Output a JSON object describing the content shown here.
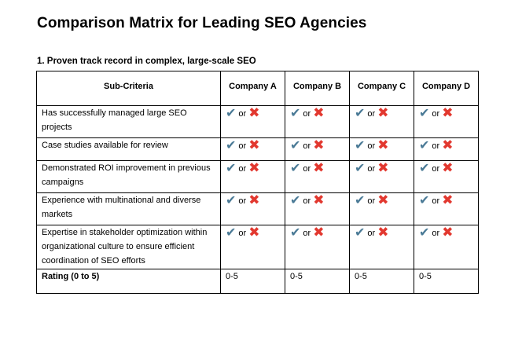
{
  "title": "Comparison Matrix for Leading SEO Agencies",
  "section": {
    "heading": "1. Proven track record in complex, large-scale SEO"
  },
  "table": {
    "headers": [
      "Sub-Criteria",
      "Company A",
      "Company B",
      "Company C",
      "Company D"
    ],
    "rows": [
      {
        "criteria": "Has successfully managed large SEO projects"
      },
      {
        "criteria": "Case studies available for review"
      },
      {
        "criteria": "Demonstrated ROI improvement in previous campaigns"
      },
      {
        "criteria": "Experience with multinational and diverse markets"
      },
      {
        "criteria": "Expertise in stakeholder optimization within organizational culture to ensure efficient coordination of SEO efforts"
      }
    ],
    "cell_mark": {
      "check_icon": "check-mark-icon",
      "or_text": "or",
      "cross_icon": "cross-mark-icon",
      "check_color": "#4a7a96",
      "cross_color": "#e2382f"
    },
    "rating_row": {
      "label": "Rating (0 to 5)",
      "values": [
        "0-5",
        "0-5",
        "0-5",
        "0-5"
      ]
    }
  }
}
